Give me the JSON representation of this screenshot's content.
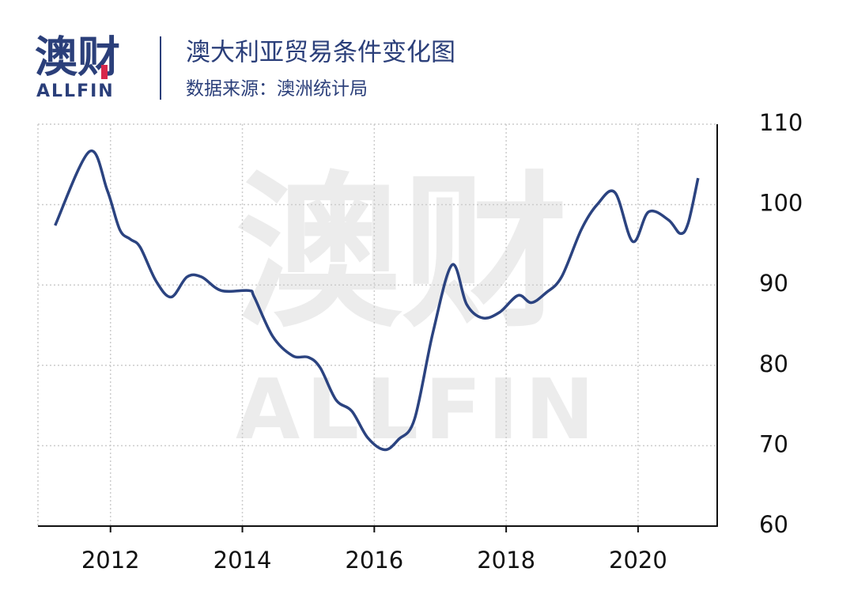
{
  "logo": {
    "name": "澳财",
    "sub": "ALLFIN"
  },
  "chart_data": {
    "type": "line",
    "title": "澳大利亚贸易条件变化图",
    "subtitle": "数据来源：澳洲统计局",
    "watermark": {
      "name": "澳财",
      "sub": "ALLFIN"
    },
    "x": [
      2011.16,
      2011.68,
      2011.95,
      2012.14,
      2012.3,
      2012.45,
      2012.69,
      2012.92,
      2013.16,
      2013.38,
      2013.68,
      2014.1,
      2014.18,
      2014.46,
      2014.76,
      2015.0,
      2015.18,
      2015.42,
      2015.66,
      2015.9,
      2016.16,
      2016.37,
      2016.61,
      2016.89,
      2017.18,
      2017.4,
      2017.64,
      2017.9,
      2018.18,
      2018.38,
      2018.6,
      2018.84,
      2019.14,
      2019.38,
      2019.65,
      2019.92,
      2020.16,
      2020.46,
      2020.64,
      2020.76,
      2020.91
    ],
    "series": [
      {
        "name": "贸易条件",
        "color": "#2b4380",
        "values": [
          97.4,
          106.6,
          101.8,
          96.9,
          95.7,
          94.7,
          90.5,
          88.5,
          91,
          91,
          89.3,
          89.3,
          88.5,
          83.6,
          81.2,
          81,
          79.7,
          75.7,
          74.3,
          71,
          69.5,
          70.8,
          73.3,
          84.1,
          92.5,
          87.6,
          85.9,
          86.6,
          88.7,
          87.8,
          89,
          91,
          96.9,
          100,
          101.5,
          95.4,
          99.1,
          98.1,
          96.4,
          97.7,
          103.3
        ]
      }
    ],
    "xlim": [
      2010.9,
      2021.2
    ],
    "xticks": [
      2012,
      2014,
      2016,
      2018,
      2020
    ],
    "ylim": [
      60,
      110
    ],
    "yticks": [
      60,
      70,
      80,
      90,
      100,
      110
    ],
    "grid": true
  }
}
